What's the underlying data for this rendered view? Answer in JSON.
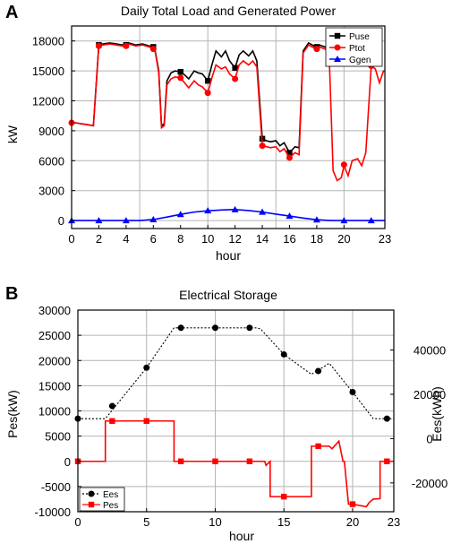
{
  "chart_data": [
    {
      "panel": "A",
      "type": "line",
      "title": "Daily Total Load and Generated Power",
      "xlabel": "hour",
      "ylabel": "kW",
      "xlim": [
        0,
        23
      ],
      "ylim": [
        -800,
        19500
      ],
      "xticks": [
        0,
        5,
        10,
        15,
        20
      ],
      "xtick_labels": [
        "0",
        "2",
        "4",
        "6",
        "8",
        "10",
        "12",
        "14",
        "16",
        "18",
        "20",
        "23"
      ],
      "xtick_positions": [
        0,
        2,
        4,
        6,
        8,
        10,
        12,
        14,
        16,
        18,
        20,
        23
      ],
      "yticks": [
        0,
        3000,
        6000,
        9000,
        12000,
        15000,
        18000
      ],
      "ytick_labels": [
        "0",
        "3000",
        "6000",
        "9000",
        "12000",
        "15000",
        "18000"
      ],
      "grid": true,
      "legend_position": "top-right",
      "series": [
        {
          "name": "Puse",
          "color": "#000000",
          "marker": "square",
          "x": [
            0,
            0.3,
            0.7,
            1.2,
            1.6,
            2.0,
            2.3,
            2.8,
            3.3,
            3.7,
            4.2,
            4.7,
            5.2,
            5.7,
            6.1,
            6.4,
            6.6,
            6.8,
            7.0,
            7.3,
            7.6,
            8.0,
            8.3,
            8.6,
            9.0,
            9.3,
            9.6,
            10.0,
            10.3,
            10.6,
            11.0,
            11.3,
            11.6,
            12.0,
            12.3,
            12.6,
            13.0,
            13.3,
            13.6,
            14.0,
            14.3,
            14.6,
            15.0,
            15.3,
            15.6,
            16.0,
            16.4,
            16.7,
            17.0,
            17.4,
            17.8,
            18.2,
            18.6,
            18.9
          ],
          "y": [
            9800,
            9800,
            9700,
            9600,
            9500,
            17600,
            17700,
            17800,
            17700,
            17600,
            17800,
            17600,
            17700,
            17500,
            17300,
            15000,
            9500,
            9700,
            14000,
            14800,
            15000,
            14900,
            14600,
            14200,
            15000,
            14800,
            14700,
            14000,
            15600,
            17000,
            16400,
            17000,
            16000,
            15300,
            16600,
            17000,
            16500,
            17000,
            16000,
            8200,
            8000,
            7900,
            8000,
            7500,
            7800,
            6800,
            7400,
            7300,
            17000,
            17800,
            17500,
            17600,
            17400,
            17200
          ],
          "markers_x": [
            2,
            4,
            6,
            8,
            10,
            12,
            14,
            16,
            18
          ],
          "markers_y": [
            17600,
            17600,
            17400,
            14900,
            14000,
            15300,
            8200,
            6800,
            17400
          ]
        },
        {
          "name": "Ptot",
          "color": "#ff0000",
          "marker": "circle",
          "x": [
            0,
            0.3,
            0.7,
            1.2,
            1.6,
            2.0,
            2.3,
            2.8,
            3.3,
            3.7,
            4.2,
            4.7,
            5.2,
            5.7,
            6.1,
            6.4,
            6.6,
            6.8,
            7.0,
            7.3,
            7.6,
            8.0,
            8.3,
            8.6,
            9.0,
            9.3,
            9.6,
            10.0,
            10.3,
            10.6,
            11.0,
            11.3,
            11.6,
            12.0,
            12.3,
            12.6,
            13.0,
            13.3,
            13.6,
            14.0,
            14.3,
            14.6,
            15.0,
            15.3,
            15.6,
            16.0,
            16.4,
            16.7,
            17.0,
            17.4,
            17.8,
            18.2,
            18.6,
            18.9,
            19.2,
            19.5,
            19.8,
            20.0,
            20.3,
            20.6,
            21.0,
            21.3,
            21.6,
            22.0,
            22.3,
            22.6,
            22.9,
            23.0
          ],
          "y": [
            9800,
            9800,
            9700,
            9600,
            9500,
            17500,
            17600,
            17700,
            17600,
            17500,
            17700,
            17500,
            17600,
            17400,
            17200,
            14800,
            9300,
            9500,
            13600,
            14200,
            14400,
            14300,
            13800,
            13300,
            14000,
            13600,
            13400,
            12800,
            14300,
            15600,
            15200,
            15400,
            14700,
            14200,
            15600,
            16000,
            15600,
            16000,
            15400,
            7500,
            7400,
            7300,
            7400,
            6900,
            7200,
            6300,
            6800,
            6600,
            16800,
            17600,
            17300,
            17400,
            17200,
            17000,
            5000,
            4000,
            4300,
            5500,
            4500,
            6000,
            6200,
            5500,
            6800,
            15500,
            15200,
            13800,
            15000,
            15000
          ],
          "markers_x": [
            0,
            2,
            4,
            6,
            8,
            10,
            12,
            14,
            16,
            18,
            20,
            22
          ],
          "markers_y": [
            9800,
            17500,
            17500,
            17200,
            14300,
            12800,
            14200,
            7500,
            6300,
            17200,
            5600,
            15500
          ]
        },
        {
          "name": "Ggen",
          "color": "#0000ff",
          "marker": "triangle",
          "x": [
            0,
            1,
            2,
            3,
            4,
            5,
            6,
            7,
            8,
            9,
            10,
            11,
            12,
            13,
            14,
            15,
            16,
            17,
            18,
            19,
            20,
            21,
            22,
            23
          ],
          "y": [
            0,
            0,
            0,
            0,
            0,
            0,
            100,
            350,
            620,
            850,
            980,
            1060,
            1100,
            1000,
            850,
            640,
            450,
            250,
            80,
            0,
            0,
            0,
            0,
            0
          ],
          "markers_x": [
            0,
            2,
            4,
            6,
            8,
            10,
            12,
            14,
            16,
            18,
            20,
            22
          ],
          "markers_y": [
            0,
            0,
            0,
            100,
            620,
            980,
            1100,
            850,
            450,
            80,
            0,
            0
          ]
        }
      ]
    },
    {
      "panel": "B",
      "type": "line",
      "title": "Electrical Storage",
      "xlabel": "hour",
      "ylabel_left": "Pes(kW)",
      "ylabel_right": "Ees(kWh)",
      "xlim": [
        0,
        23
      ],
      "ylim_left": [
        -10000,
        30000
      ],
      "ylim_right": [
        -33000,
        58000
      ],
      "xtick_positions": [
        0,
        5,
        10,
        15,
        20,
        23
      ],
      "xtick_labels": [
        "0",
        "5",
        "10",
        "15",
        "20",
        "23"
      ],
      "ytick_left": [
        -10000,
        -5000,
        0,
        5000,
        10000,
        15000,
        20000,
        25000,
        30000
      ],
      "ytick_left_labels": [
        "-10000",
        "-5000",
        "0",
        "5000",
        "10000",
        "15000",
        "20000",
        "25000",
        "30000"
      ],
      "ytick_right": [
        -20000,
        0,
        20000,
        40000
      ],
      "ytick_right_labels": [
        "-20000",
        "0",
        "20000",
        "40000"
      ],
      "grid": true,
      "legend_position": "bottom-left",
      "series": [
        {
          "name": "Ees",
          "axis": "right",
          "color": "#000000",
          "marker": "circle",
          "dashed": true,
          "x": [
            0,
            2,
            5,
            7,
            9,
            13,
            13.3,
            15,
            17,
            18.3,
            20,
            21.5,
            23
          ],
          "y": [
            9000,
            9000,
            32000,
            50000,
            50000,
            50000,
            49500,
            38000,
            29000,
            34000,
            21000,
            9000,
            9000
          ],
          "markers_x": [
            0,
            2.5,
            5,
            7.5,
            10,
            12.5,
            15,
            17.5,
            20,
            22.5
          ],
          "markers_y": [
            9000,
            14700,
            32000,
            50000,
            50000,
            50000,
            38000,
            30500,
            21000,
            9000
          ]
        },
        {
          "name": "Pes",
          "axis": "left",
          "color": "#ff0000",
          "marker": "square",
          "dashed": false,
          "x": [
            0,
            2,
            2,
            7,
            7,
            13.3,
            13.6,
            13.7,
            14,
            14,
            17,
            17,
            18.3,
            18.5,
            19,
            19.3,
            19.4,
            19.7,
            20,
            20,
            21,
            21.2,
            21.5,
            22,
            22,
            23
          ],
          "y": [
            0,
            0,
            8000,
            8000,
            0,
            0,
            0,
            -800,
            0,
            -7000,
            -7000,
            3000,
            3000,
            2500,
            4000,
            0,
            0,
            -8500,
            -8500,
            -8500,
            -9000,
            -8200,
            -7500,
            -7400,
            0,
            0
          ],
          "markers_x": [
            0,
            2.5,
            5,
            7.5,
            10,
            12.5,
            15,
            17.5,
            20,
            22.5
          ],
          "markers_y": [
            0,
            8000,
            8000,
            0,
            0,
            0,
            -7000,
            3000,
            -8500,
            0
          ]
        }
      ]
    }
  ],
  "labels": {
    "panel_a": "A",
    "panel_b": "B"
  }
}
